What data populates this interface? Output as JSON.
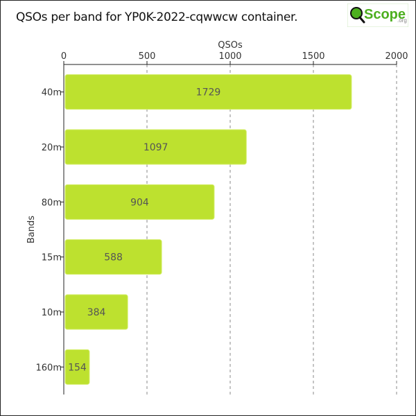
{
  "title": "QSOs per band for YP0K-2022-cqwwcw container.",
  "logo": {
    "text": "Scope",
    "suffix": ".org",
    "icon": "magnifier-q-icon",
    "color": "#4caf1e"
  },
  "colors": {
    "bar": "#bde12f",
    "bar_stroke": "#d4ee6a",
    "grid": "#888888",
    "axis": "#222222",
    "text": "#333333"
  },
  "chart_data": {
    "type": "bar",
    "orientation": "horizontal",
    "categories": [
      "40m",
      "20m",
      "80m",
      "15m",
      "10m",
      "160m"
    ],
    "values": [
      1729,
      1097,
      904,
      588,
      384,
      154
    ],
    "xlabel": "QSOs",
    "ylabel": "Bands",
    "xlim": [
      0,
      2000
    ],
    "xticks": [
      0,
      500,
      1000,
      1500,
      2000
    ],
    "xtick_labels": [
      "0",
      "500",
      "1000",
      "1500",
      "2000"
    ],
    "x_axis_position": "top",
    "grid": true,
    "grid_style": "dashed",
    "data_labels": true
  }
}
